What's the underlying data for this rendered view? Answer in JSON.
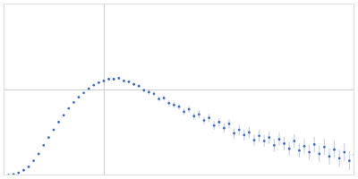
{
  "chart_data": {
    "type": "scatter",
    "color": "#3a66c0",
    "marker": "circle",
    "grid": true,
    "tick_labels": false,
    "xlim": [
      0,
      0.35
    ],
    "xticks": [
      0.1
    ],
    "ylim": [
      0,
      2
    ],
    "yticks": [
      1
    ],
    "x": [
      0.0,
      0.005,
      0.01,
      0.015,
      0.02,
      0.025,
      0.03,
      0.035,
      0.04,
      0.045,
      0.05,
      0.055,
      0.06,
      0.065,
      0.07,
      0.075,
      0.08,
      0.085,
      0.09,
      0.095,
      0.1,
      0.105,
      0.11,
      0.115,
      0.12,
      0.125,
      0.13,
      0.135,
      0.14,
      0.145,
      0.15,
      0.155,
      0.16,
      0.165,
      0.17,
      0.175,
      0.18,
      0.185,
      0.19,
      0.195,
      0.2,
      0.205,
      0.21,
      0.215,
      0.22,
      0.225,
      0.23,
      0.235,
      0.24,
      0.245,
      0.25,
      0.255,
      0.26,
      0.265,
      0.27,
      0.275,
      0.28,
      0.285,
      0.29,
      0.295,
      0.3,
      0.305,
      0.31,
      0.315,
      0.32,
      0.325,
      0.33,
      0.335,
      0.34,
      0.345,
      0.35
    ],
    "values": [
      0.0,
      0.003,
      0.012,
      0.03,
      0.06,
      0.1,
      0.17,
      0.25,
      0.35,
      0.44,
      0.53,
      0.62,
      0.7,
      0.78,
      0.85,
      0.91,
      0.96,
      1.01,
      1.05,
      1.08,
      1.1,
      1.12,
      1.12,
      1.13,
      1.1,
      1.09,
      1.06,
      1.04,
      0.99,
      0.97,
      0.95,
      0.89,
      0.9,
      0.84,
      0.82,
      0.8,
      0.74,
      0.77,
      0.69,
      0.71,
      0.64,
      0.67,
      0.58,
      0.62,
      0.55,
      0.6,
      0.49,
      0.53,
      0.47,
      0.5,
      0.41,
      0.46,
      0.4,
      0.44,
      0.35,
      0.42,
      0.37,
      0.31,
      0.4,
      0.29,
      0.34,
      0.27,
      0.36,
      0.25,
      0.33,
      0.22,
      0.3,
      0.2,
      0.27,
      0.17,
      0.24
    ],
    "errors": [
      0.002,
      0.002,
      0.002,
      0.003,
      0.003,
      0.003,
      0.004,
      0.004,
      0.004,
      0.005,
      0.005,
      0.005,
      0.006,
      0.006,
      0.007,
      0.007,
      0.008,
      0.009,
      0.01,
      0.011,
      0.012,
      0.013,
      0.014,
      0.015,
      0.016,
      0.018,
      0.019,
      0.02,
      0.022,
      0.024,
      0.026,
      0.028,
      0.03,
      0.032,
      0.034,
      0.036,
      0.038,
      0.04,
      0.042,
      0.044,
      0.046,
      0.048,
      0.05,
      0.052,
      0.054,
      0.056,
      0.058,
      0.06,
      0.062,
      0.064,
      0.066,
      0.068,
      0.07,
      0.072,
      0.074,
      0.076,
      0.078,
      0.08,
      0.082,
      0.084,
      0.086,
      0.088,
      0.09,
      0.092,
      0.094,
      0.096,
      0.098,
      0.1,
      0.105,
      0.11,
      0.115
    ]
  }
}
